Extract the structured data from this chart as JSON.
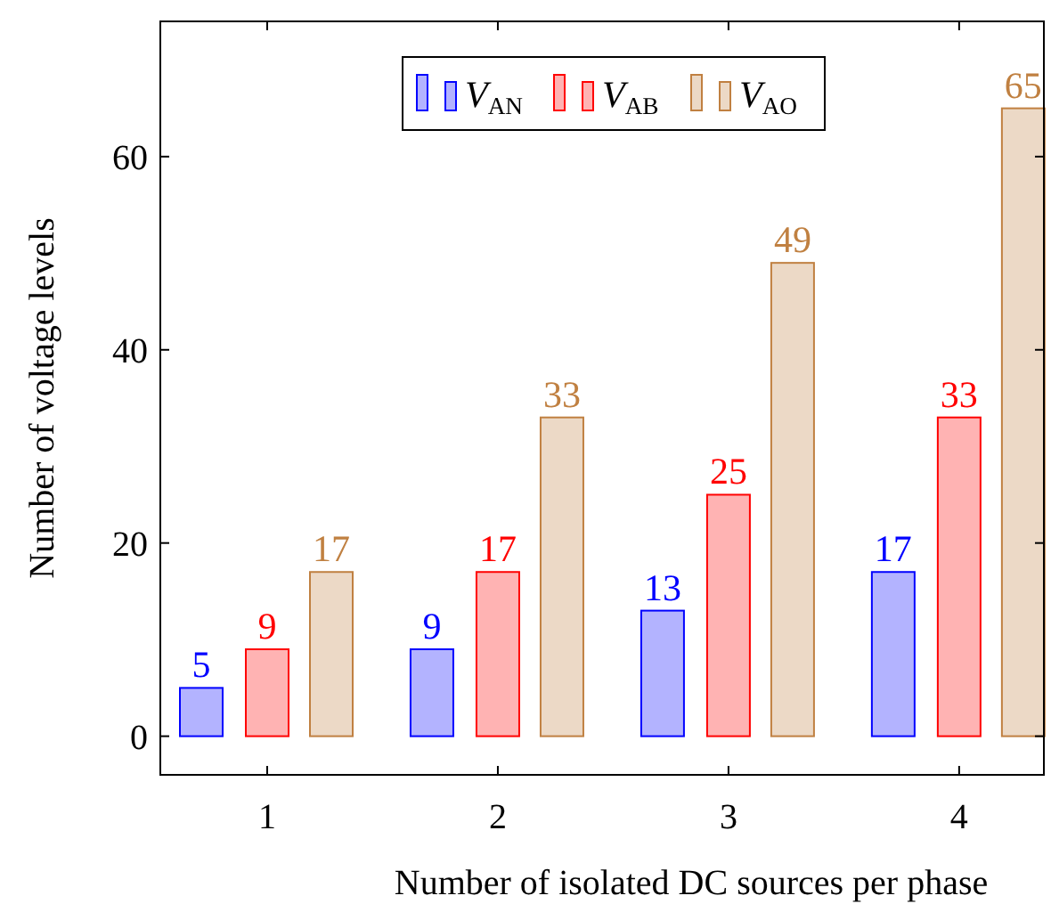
{
  "chart_data": {
    "type": "bar",
    "categories": [
      "1",
      "2",
      "3",
      "4"
    ],
    "xlabel": "Number of isolated DC sources per phase",
    "ylabel": "Number of voltage levels",
    "ylim": [
      -4,
      74
    ],
    "yticks": [
      0,
      20,
      40,
      60
    ],
    "data_labels": true,
    "legend": "top",
    "grid": false,
    "series": [
      {
        "name": "V$_{AN}$",
        "color": "#b3b3ff",
        "values": [
          5,
          9,
          13,
          17
        ]
      },
      {
        "name": "V$_{AB}$",
        "color": "#ffb3b3",
        "values": [
          9,
          17,
          25,
          33
        ]
      },
      {
        "name": "V$_{AO}$",
        "color": "#ecd9c6",
        "values": [
          17,
          33,
          49,
          65
        ]
      }
    ]
  }
}
